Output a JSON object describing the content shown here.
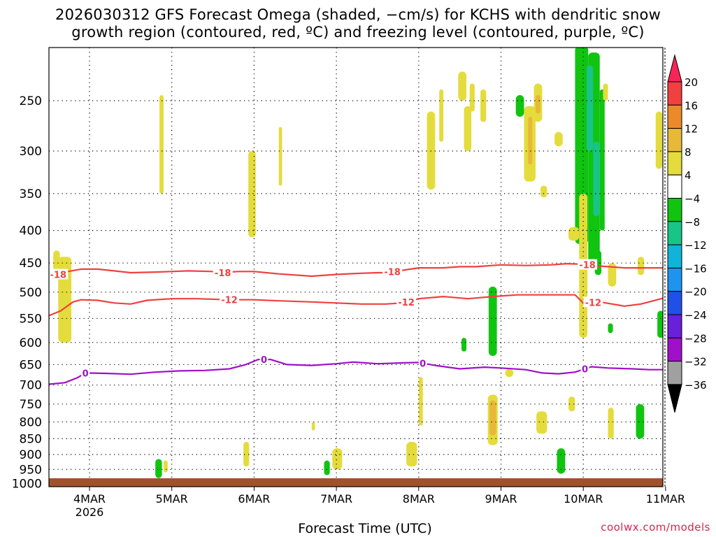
{
  "title_line1": "2026030312 GFS Forecast Omega (shaded, −cm/s) for KCHS with dendritic snow",
  "title_line2": "growth region (contoured, red, ºC) and freezing level (contoured, purple, ºC)",
  "credit": "coolwx.com/models",
  "chart_data": {
    "type": "heatmap",
    "xlabel": "Forecast Time (UTC)",
    "ylabel": "",
    "x_ticks": [
      {
        "t": 0,
        "label": "4MAR",
        "sub": "2026"
      },
      {
        "t": 1,
        "label": "5MAR",
        "sub": ""
      },
      {
        "t": 2,
        "label": "6MAR",
        "sub": ""
      },
      {
        "t": 3,
        "label": "7MAR",
        "sub": ""
      },
      {
        "t": 4,
        "label": "8MAR",
        "sub": ""
      },
      {
        "t": 5,
        "label": "9MAR",
        "sub": ""
      },
      {
        "t": 6,
        "label": "10MAR",
        "sub": ""
      },
      {
        "t": 7,
        "label": "11MAR",
        "sub": ""
      }
    ],
    "xlim": [
      -0.5,
      7.0
    ],
    "y_ticks": [
      250,
      300,
      350,
      400,
      450,
      500,
      550,
      600,
      650,
      700,
      750,
      800,
      850,
      900,
      950,
      1000
    ],
    "ylim": [
      200,
      1020
    ],
    "y_scale": "log",
    "grid": true,
    "colorbar": {
      "labels": [
        "20",
        "16",
        "12",
        "8",
        "4",
        "−4",
        "−8",
        "−12",
        "−16",
        "−20",
        "−24",
        "−28",
        "−32",
        "−36"
      ],
      "colors": [
        "#f82458",
        "#f04040",
        "#ec8a2a",
        "#e8b838",
        "#e4dc3c",
        "#ffffff",
        "#10c410",
        "#18c488",
        "#10b4d8",
        "#1c94f0",
        "#2050e8",
        "#6a20d8",
        "#a010c8",
        "#a0a0a0",
        "#000000"
      ]
    },
    "contours": [
      {
        "name": "-18",
        "color": "#f04040",
        "points": [
          [
            -0.5,
            474
          ],
          [
            -0.4,
            470
          ],
          [
            -0.3,
            465
          ],
          [
            -0.1,
            460
          ],
          [
            0.1,
            460
          ],
          [
            0.3,
            463
          ],
          [
            0.5,
            466
          ],
          [
            0.8,
            465
          ],
          [
            1.2,
            463
          ],
          [
            1.5,
            464
          ],
          [
            1.6,
            466
          ],
          [
            1.8,
            464
          ],
          [
            2.0,
            464
          ],
          [
            2.3,
            468
          ],
          [
            2.7,
            472
          ],
          [
            3.0,
            469
          ],
          [
            3.3,
            467
          ],
          [
            3.5,
            466
          ],
          [
            3.6,
            466
          ],
          [
            3.8,
            462
          ],
          [
            4.0,
            458
          ],
          [
            4.3,
            458
          ],
          [
            4.5,
            456
          ],
          [
            4.7,
            456
          ],
          [
            4.8,
            455
          ],
          [
            5.0,
            453
          ],
          [
            5.3,
            454
          ],
          [
            5.6,
            453
          ],
          [
            5.8,
            451
          ],
          [
            6.0,
            452
          ],
          [
            6.2,
            455
          ],
          [
            6.5,
            458
          ],
          [
            6.8,
            458
          ],
          [
            7.0,
            458
          ]
        ],
        "labels": [
          {
            "t": -0.38,
            "text": "-18"
          },
          {
            "t": 1.62,
            "text": "-18"
          },
          {
            "t": 3.68,
            "text": "-18"
          },
          {
            "t": 6.05,
            "text": "-18"
          }
        ]
      },
      {
        "name": "-12",
        "color": "#f04040",
        "points": [
          [
            -0.5,
            545
          ],
          [
            -0.35,
            535
          ],
          [
            -0.2,
            518
          ],
          [
            -0.1,
            514
          ],
          [
            0.1,
            515
          ],
          [
            0.3,
            520
          ],
          [
            0.5,
            522
          ],
          [
            0.7,
            515
          ],
          [
            1.0,
            512
          ],
          [
            1.3,
            512
          ],
          [
            1.7,
            514
          ],
          [
            2.0,
            514
          ],
          [
            2.3,
            516
          ],
          [
            2.7,
            518
          ],
          [
            3.0,
            520
          ],
          [
            3.3,
            522
          ],
          [
            3.6,
            522
          ],
          [
            3.8,
            520
          ],
          [
            4.0,
            512
          ],
          [
            4.3,
            508
          ],
          [
            4.6,
            512
          ],
          [
            4.9,
            508
          ],
          [
            5.2,
            505
          ],
          [
            5.6,
            505
          ],
          [
            5.9,
            505
          ],
          [
            6.0,
            520
          ],
          [
            6.2,
            518
          ],
          [
            6.5,
            526
          ],
          [
            6.7,
            522
          ],
          [
            7.0,
            510
          ]
        ],
        "labels": [
          {
            "t": 1.7,
            "text": "-12"
          },
          {
            "t": 3.85,
            "text": "-12"
          },
          {
            "t": 6.12,
            "text": "-12"
          }
        ]
      },
      {
        "name": "0",
        "color": "#a010c8",
        "points": [
          [
            -0.5,
            698
          ],
          [
            -0.3,
            694
          ],
          [
            -0.15,
            682
          ],
          [
            -0.05,
            670
          ],
          [
            0.2,
            671
          ],
          [
            0.5,
            673
          ],
          [
            0.8,
            668
          ],
          [
            1.1,
            665
          ],
          [
            1.4,
            664
          ],
          [
            1.7,
            660
          ],
          [
            1.9,
            650
          ],
          [
            2.05,
            638
          ],
          [
            2.2,
            638
          ],
          [
            2.4,
            650
          ],
          [
            2.7,
            652
          ],
          [
            3.0,
            648
          ],
          [
            3.2,
            644
          ],
          [
            3.5,
            648
          ],
          [
            3.8,
            646
          ],
          [
            4.0,
            645
          ],
          [
            4.2,
            652
          ],
          [
            4.5,
            660
          ],
          [
            4.8,
            656
          ],
          [
            5.0,
            658
          ],
          [
            5.3,
            662
          ],
          [
            5.5,
            670
          ],
          [
            5.7,
            672
          ],
          [
            5.9,
            668
          ],
          [
            6.1,
            655
          ],
          [
            6.3,
            658
          ],
          [
            6.6,
            660
          ],
          [
            6.8,
            662
          ],
          [
            7.0,
            662
          ]
        ],
        "labels": [
          {
            "t": -0.05,
            "text": "0"
          },
          {
            "t": 2.12,
            "text": "0"
          },
          {
            "t": 4.05,
            "text": "0"
          },
          {
            "t": 6.02,
            "text": "0"
          }
        ]
      }
    ],
    "shaded_cells": [
      {
        "t0": -0.38,
        "t1": -0.22,
        "p0": 440,
        "p1": 600,
        "value": 5
      },
      {
        "t0": -0.44,
        "t1": -0.36,
        "p0": 430,
        "p1": 470,
        "value": 5
      },
      {
        "t0": 0.85,
        "t1": 0.9,
        "p0": 245,
        "p1": 350,
        "value": 5
      },
      {
        "t0": 0.8,
        "t1": 0.88,
        "p0": 915,
        "p1": 980,
        "value": -6
      },
      {
        "t0": 0.9,
        "t1": 0.95,
        "p0": 920,
        "p1": 960,
        "value": 5
      },
      {
        "t0": 1.93,
        "t1": 2.02,
        "p0": 300,
        "p1": 410,
        "value": 5
      },
      {
        "t0": 2.3,
        "t1": 2.34,
        "p0": 275,
        "p1": 340,
        "value": 5
      },
      {
        "t0": 1.87,
        "t1": 1.94,
        "p0": 860,
        "p1": 940,
        "value": 5
      },
      {
        "t0": 2.7,
        "t1": 2.74,
        "p0": 800,
        "p1": 825,
        "value": 5
      },
      {
        "t0": 2.85,
        "t1": 2.92,
        "p0": 920,
        "p1": 970,
        "value": -6
      },
      {
        "t0": 2.95,
        "t1": 3.07,
        "p0": 880,
        "p1": 950,
        "value": 5
      },
      {
        "t0": 4.1,
        "t1": 4.2,
        "p0": 260,
        "p1": 345,
        "value": 5
      },
      {
        "t0": 4.25,
        "t1": 4.3,
        "p0": 240,
        "p1": 290,
        "value": 5
      },
      {
        "t0": 4.48,
        "t1": 4.58,
        "p0": 225,
        "p1": 250,
        "value": 5
      },
      {
        "t0": 4.55,
        "t1": 4.64,
        "p0": 255,
        "p1": 300,
        "value": 5
      },
      {
        "t0": 4.62,
        "t1": 4.68,
        "p0": 235,
        "p1": 260,
        "value": 5
      },
      {
        "t0": 4.75,
        "t1": 4.82,
        "p0": 240,
        "p1": 270,
        "value": 5
      },
      {
        "t0": 3.85,
        "t1": 3.98,
        "p0": 860,
        "p1": 940,
        "value": 5
      },
      {
        "t0": 4.0,
        "t1": 4.05,
        "p0": 680,
        "p1": 810,
        "value": 5
      },
      {
        "t0": 4.52,
        "t1": 4.58,
        "p0": 590,
        "p1": 620,
        "value": -6
      },
      {
        "t0": 4.85,
        "t1": 4.95,
        "p0": 490,
        "p1": 630,
        "value": -6
      },
      {
        "t0": 4.84,
        "t1": 4.96,
        "p0": 725,
        "p1": 870,
        "value": 5
      },
      {
        "t0": 4.86,
        "t1": 4.94,
        "p0": 740,
        "p1": 840,
        "value": 10
      },
      {
        "t0": 5.05,
        "t1": 5.15,
        "p0": 660,
        "p1": 680,
        "value": 5
      },
      {
        "t0": 5.18,
        "t1": 5.28,
        "p0": 245,
        "p1": 265,
        "value": -6
      },
      {
        "t0": 5.28,
        "t1": 5.42,
        "p0": 255,
        "p1": 335,
        "value": 5
      },
      {
        "t0": 5.33,
        "t1": 5.38,
        "p0": 265,
        "p1": 315,
        "value": 10
      },
      {
        "t0": 5.4,
        "t1": 5.5,
        "p0": 235,
        "p1": 270,
        "value": 5
      },
      {
        "t0": 5.42,
        "t1": 5.48,
        "p0": 245,
        "p1": 262,
        "value": 10
      },
      {
        "t0": 5.65,
        "t1": 5.75,
        "p0": 280,
        "p1": 295,
        "value": 5
      },
      {
        "t0": 5.48,
        "t1": 5.56,
        "p0": 340,
        "p1": 355,
        "value": 5
      },
      {
        "t0": 5.43,
        "t1": 5.56,
        "p0": 770,
        "p1": 835,
        "value": 5
      },
      {
        "t0": 5.82,
        "t1": 5.9,
        "p0": 730,
        "p1": 770,
        "value": 5
      },
      {
        "t0": 5.68,
        "t1": 5.78,
        "p0": 880,
        "p1": 965,
        "value": -6
      },
      {
        "t0": 5.9,
        "t1": 6.06,
        "p0": 205,
        "p1": 420,
        "value": -6
      },
      {
        "t0": 6.06,
        "t1": 6.2,
        "p0": 210,
        "p1": 450,
        "value": -6
      },
      {
        "t0": 6.14,
        "t1": 6.22,
        "p0": 430,
        "p1": 470,
        "value": -6
      },
      {
        "t0": 6.04,
        "t1": 6.12,
        "p0": 220,
        "p1": 300,
        "value": -10
      },
      {
        "t0": 6.12,
        "t1": 6.2,
        "p0": 290,
        "p1": 380,
        "value": -10
      },
      {
        "t0": 6.2,
        "t1": 6.26,
        "p0": 240,
        "p1": 400,
        "value": -6
      },
      {
        "t0": 6.24,
        "t1": 6.3,
        "p0": 235,
        "p1": 250,
        "value": 5
      },
      {
        "t0": 5.95,
        "t1": 6.05,
        "p0": 350,
        "p1": 590,
        "value": 5
      },
      {
        "t0": 5.82,
        "t1": 5.95,
        "p0": 395,
        "p1": 415,
        "value": 5
      },
      {
        "t0": 6.3,
        "t1": 6.4,
        "p0": 450,
        "p1": 490,
        "value": 5
      },
      {
        "t0": 6.3,
        "t1": 6.36,
        "p0": 560,
        "p1": 580,
        "value": -6
      },
      {
        "t0": 6.66,
        "t1": 6.74,
        "p0": 440,
        "p1": 470,
        "value": 5
      },
      {
        "t0": 6.88,
        "t1": 6.96,
        "p0": 260,
        "p1": 320,
        "value": 5
      },
      {
        "t0": 6.9,
        "t1": 6.98,
        "p0": 535,
        "p1": 590,
        "value": -6
      },
      {
        "t0": 6.3,
        "t1": 6.37,
        "p0": 760,
        "p1": 850,
        "value": 5
      },
      {
        "t0": 6.64,
        "t1": 6.74,
        "p0": 750,
        "p1": 850,
        "value": -6
      }
    ],
    "ground_color": "#a0522d"
  }
}
